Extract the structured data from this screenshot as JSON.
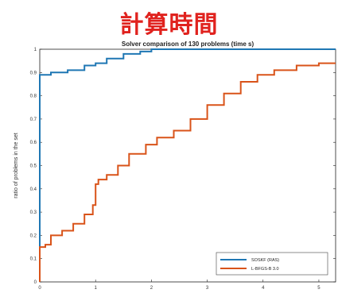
{
  "heading": "計算時間",
  "chart_data": {
    "type": "line",
    "title": "Solver comparison of 130 problems (time s)",
    "xlabel": "",
    "ylabel": "ratio of problems in the set",
    "xlim": [
      0,
      5.3
    ],
    "ylim": [
      0,
      1
    ],
    "xticks": [
      "0",
      "1",
      "2",
      "3",
      "4",
      "5"
    ],
    "yticks": [
      "0",
      "0.1",
      "0.2",
      "0.3",
      "0.4",
      "0.5",
      "0.6",
      "0.7",
      "0.8",
      "0.9",
      "1"
    ],
    "grid": false,
    "legend_position": "bottom-right",
    "series": [
      {
        "name": "SOSKF (RAS)",
        "color": "#1f77b4",
        "points": [
          [
            0,
            0
          ],
          [
            0,
            0.89
          ],
          [
            0.1,
            0.89
          ],
          [
            0.2,
            0.9
          ],
          [
            0.5,
            0.91
          ],
          [
            0.8,
            0.93
          ],
          [
            1.0,
            0.94
          ],
          [
            1.2,
            0.96
          ],
          [
            1.5,
            0.98
          ],
          [
            1.8,
            0.99
          ],
          [
            2.0,
            1.0
          ],
          [
            5.3,
            1.0
          ]
        ]
      },
      {
        "name": "L-BFGS-B 3.0",
        "color": "#d95319",
        "points": [
          [
            0,
            0
          ],
          [
            0,
            0.15
          ],
          [
            0.1,
            0.16
          ],
          [
            0.2,
            0.2
          ],
          [
            0.4,
            0.22
          ],
          [
            0.6,
            0.25
          ],
          [
            0.8,
            0.29
          ],
          [
            0.95,
            0.33
          ],
          [
            1.0,
            0.42
          ],
          [
            1.05,
            0.44
          ],
          [
            1.2,
            0.46
          ],
          [
            1.4,
            0.5
          ],
          [
            1.6,
            0.55
          ],
          [
            1.9,
            0.59
          ],
          [
            2.1,
            0.62
          ],
          [
            2.4,
            0.65
          ],
          [
            2.7,
            0.7
          ],
          [
            3.0,
            0.76
          ],
          [
            3.3,
            0.81
          ],
          [
            3.6,
            0.86
          ],
          [
            3.9,
            0.89
          ],
          [
            4.2,
            0.91
          ],
          [
            4.6,
            0.93
          ],
          [
            5.0,
            0.94
          ],
          [
            5.3,
            0.94
          ]
        ]
      }
    ]
  }
}
